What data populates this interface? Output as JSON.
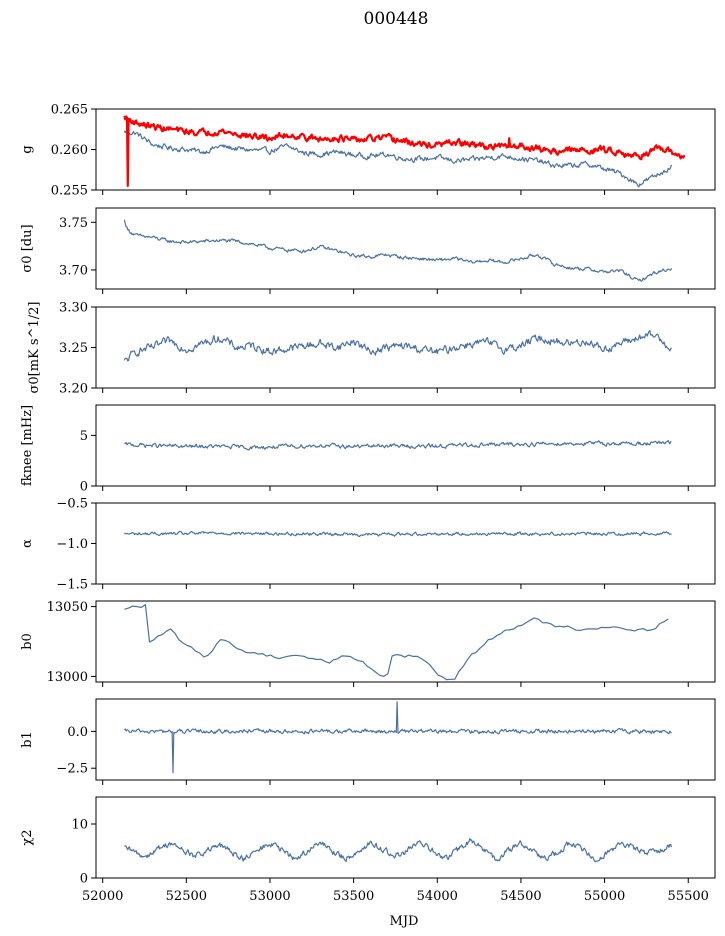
{
  "figure": {
    "title": "000448",
    "xlabel": "MJD",
    "x_ticks": [
      "52000",
      "52500",
      "53000",
      "53500",
      "54000",
      "54500",
      "55000",
      "55500"
    ]
  },
  "colors": {
    "series": "#4c72a4",
    "reference": "#ff0000"
  },
  "chart_data": [
    {
      "type": "line",
      "id": "gain",
      "ylabel": "g",
      "xlim": [
        51960,
        55660
      ],
      "ylim": [
        0.255,
        0.265
      ],
      "yticks": [
        "0.255",
        "0.260",
        "0.265"
      ],
      "series": [
        {
          "name": "g",
          "x": [
            52130,
            52200,
            52300,
            52400,
            52500,
            52600,
            52700,
            52800,
            52900,
            53000,
            53100,
            53200,
            53300,
            53400,
            53500,
            53600,
            53700,
            53800,
            53900,
            54000,
            54100,
            54200,
            54300,
            54400,
            54500,
            54600,
            54700,
            54800,
            54900,
            55000,
            55100,
            55200,
            55300,
            55400
          ],
          "y": [
            0.2622,
            0.262,
            0.2606,
            0.2602,
            0.26,
            0.2597,
            0.2604,
            0.2601,
            0.2599,
            0.2598,
            0.2604,
            0.2596,
            0.2594,
            0.2597,
            0.2593,
            0.2592,
            0.2594,
            0.2589,
            0.2588,
            0.259,
            0.2586,
            0.2587,
            0.259,
            0.2592,
            0.2589,
            0.2586,
            0.258,
            0.258,
            0.2582,
            0.2576,
            0.257,
            0.2557,
            0.2567,
            0.2579
          ]
        },
        {
          "name": "reference",
          "x": [
            52130,
            52200,
            52300,
            52400,
            52500,
            52600,
            52700,
            52800,
            52900,
            53000,
            53100,
            53200,
            53300,
            53400,
            53500,
            53600,
            53700,
            53800,
            53900,
            54000,
            54100,
            54200,
            54300,
            54400,
            54500,
            54600,
            54700,
            54800,
            54900,
            55000,
            55100,
            55200,
            55300,
            55400,
            55480
          ],
          "y": [
            0.264,
            0.2633,
            0.2628,
            0.2625,
            0.2622,
            0.2621,
            0.2623,
            0.2619,
            0.2616,
            0.2614,
            0.2618,
            0.2616,
            0.2612,
            0.2615,
            0.2611,
            0.2613,
            0.2614,
            0.261,
            0.2606,
            0.2605,
            0.2609,
            0.2606,
            0.2604,
            0.2603,
            0.2605,
            0.2601,
            0.2598,
            0.2599,
            0.2599,
            0.26,
            0.2597,
            0.2591,
            0.26,
            0.2597,
            0.259
          ]
        }
      ],
      "annotations": [
        "reference line drops to 0.2555 near MJD 52150",
        "spike near MJD 54430"
      ]
    },
    {
      "type": "line",
      "id": "sigma0_du",
      "ylabel": "σ0 [du]",
      "xlim": [
        51960,
        55660
      ],
      "ylim": [
        3.68,
        3.765
      ],
      "yticks": [
        "3.70",
        "3.75"
      ],
      "series": [
        {
          "name": "sigma0",
          "x": [
            52130,
            52150,
            52200,
            52300,
            52400,
            52500,
            52600,
            52700,
            52800,
            52900,
            53000,
            53100,
            53200,
            53300,
            53400,
            53500,
            53600,
            53700,
            53800,
            53900,
            54000,
            54100,
            54200,
            54300,
            54400,
            54500,
            54600,
            54700,
            54800,
            54900,
            55000,
            55100,
            55200,
            55300,
            55400
          ],
          "y": [
            3.752,
            3.742,
            3.736,
            3.734,
            3.73,
            3.729,
            3.73,
            3.731,
            3.73,
            3.727,
            3.723,
            3.721,
            3.72,
            3.724,
            3.72,
            3.715,
            3.714,
            3.716,
            3.713,
            3.712,
            3.71,
            3.712,
            3.708,
            3.71,
            3.708,
            3.712,
            3.716,
            3.706,
            3.702,
            3.701,
            3.698,
            3.699,
            3.688,
            3.697,
            3.702
          ]
        }
      ]
    },
    {
      "type": "line",
      "id": "sigma0_mk",
      "ylabel": "σ0[mK s^1/2]",
      "xlim": [
        51960,
        55660
      ],
      "ylim": [
        3.2,
        3.3
      ],
      "yticks": [
        "3.20",
        "3.25",
        "3.30"
      ],
      "series": [
        {
          "name": "sigma0_mK",
          "x": [
            52130,
            52200,
            52300,
            52400,
            52500,
            52600,
            52700,
            52800,
            52900,
            53000,
            53100,
            53200,
            53300,
            53400,
            53500,
            53600,
            53700,
            53800,
            53900,
            54000,
            54100,
            54200,
            54300,
            54400,
            54500,
            54600,
            54700,
            54800,
            54900,
            55000,
            55100,
            55200,
            55300,
            55400
          ],
          "y": [
            3.232,
            3.245,
            3.25,
            3.258,
            3.248,
            3.255,
            3.262,
            3.25,
            3.252,
            3.245,
            3.248,
            3.252,
            3.255,
            3.25,
            3.258,
            3.245,
            3.25,
            3.252,
            3.248,
            3.244,
            3.25,
            3.255,
            3.256,
            3.248,
            3.252,
            3.262,
            3.258,
            3.255,
            3.258,
            3.248,
            3.255,
            3.262,
            3.265,
            3.25
          ]
        }
      ]
    },
    {
      "type": "line",
      "id": "fknee",
      "ylabel": "fknee [mHz]",
      "xlim": [
        51960,
        55660
      ],
      "ylim": [
        0,
        8
      ],
      "yticks": [
        "0",
        "5"
      ],
      "series": [
        {
          "name": "fknee",
          "x": [
            52130,
            52300,
            52500,
            52700,
            52900,
            53100,
            53300,
            53500,
            53700,
            53900,
            54100,
            54300,
            54500,
            54700,
            54900,
            55100,
            55300,
            55400
          ],
          "y": [
            4.1,
            4.0,
            3.9,
            3.9,
            3.8,
            3.9,
            4.0,
            3.9,
            4.0,
            3.9,
            4.0,
            4.1,
            4.1,
            4.2,
            4.2,
            4.2,
            4.2,
            4.3
          ]
        }
      ]
    },
    {
      "type": "line",
      "id": "alpha",
      "ylabel": "α",
      "xlim": [
        51960,
        55660
      ],
      "ylim": [
        -1.5,
        -0.5
      ],
      "yticks": [
        "−1.5",
        "−1.0",
        "−0.5"
      ],
      "series": [
        {
          "name": "alpha",
          "x": [
            52130,
            52400,
            52700,
            53000,
            53300,
            53600,
            53900,
            54200,
            54500,
            54800,
            55100,
            55400
          ],
          "y": [
            -0.88,
            -0.88,
            -0.87,
            -0.88,
            -0.88,
            -0.89,
            -0.88,
            -0.88,
            -0.88,
            -0.88,
            -0.88,
            -0.87
          ]
        }
      ]
    },
    {
      "type": "line",
      "id": "b0",
      "ylabel": "b0",
      "xlim": [
        51960,
        55660
      ],
      "ylim": [
        12996,
        13054
      ],
      "yticks": [
        "13000",
        "13050"
      ],
      "series": [
        {
          "name": "b0",
          "x": [
            52130,
            52150,
            52200,
            52250,
            52270,
            52280,
            52320,
            52400,
            52460,
            52500,
            52560,
            52620,
            52700,
            52750,
            52850,
            52950,
            53050,
            53150,
            53250,
            53350,
            53450,
            53550,
            53650,
            53700,
            53730,
            53850,
            53900,
            53950,
            54050,
            54100,
            54200,
            54300,
            54400,
            54500,
            54600,
            54610,
            54700,
            54850,
            55000,
            55100,
            55200,
            55250,
            55300,
            55350,
            55400
          ],
          "y": [
            13047,
            13049,
            13050,
            13051,
            13051,
            13025,
            13027,
            13033,
            13026,
            13022,
            13017,
            13014,
            13027,
            13024,
            13018,
            13016,
            13014,
            13016,
            13013,
            13010,
            13016,
            13010,
            13002,
            13000,
            13015,
            13015,
            13014,
            13007,
            12998,
            12998,
            13015,
            13025,
            13033,
            13038,
            13043,
            13037,
            13036,
            13034,
            13036,
            13035,
            13034,
            13033,
            13035,
            13040,
            13043
          ]
        }
      ]
    },
    {
      "type": "line",
      "id": "b1",
      "ylabel": "b1",
      "xlim": [
        51960,
        55660
      ],
      "ylim": [
        -3.3,
        2.2
      ],
      "yticks": [
        "−2.5",
        "0.0"
      ],
      "series": [
        {
          "name": "b1",
          "x": [
            52130,
            52400,
            52700,
            53000,
            53300,
            53600,
            53900,
            54200,
            54500,
            54800,
            55100,
            55400
          ],
          "y": [
            0.0,
            0.0,
            0.0,
            0.0,
            0.0,
            0.0,
            0.0,
            0.0,
            0.0,
            0.0,
            0.0,
            0.0
          ]
        }
      ],
      "annotations": [
        "dip to −2.8 near MJD 52420",
        "spike to 2.0 near MJD 53760"
      ]
    },
    {
      "type": "line",
      "id": "chi2",
      "ylabel": "χ2",
      "xlim": [
        51960,
        55660
      ],
      "ylim": [
        0,
        15
      ],
      "yticks": [
        "0",
        "10"
      ],
      "series": [
        {
          "name": "chi2",
          "x": [
            52130,
            52250,
            52400,
            52550,
            52700,
            52850,
            53000,
            53150,
            53300,
            53450,
            53600,
            53750,
            53900,
            54050,
            54200,
            54350,
            54500,
            54650,
            54800,
            54950,
            55100,
            55250,
            55400
          ],
          "y": [
            5.5,
            4.0,
            6.5,
            4.0,
            6.0,
            3.5,
            6.5,
            3.5,
            6.5,
            3.5,
            6.5,
            4.0,
            6.5,
            3.5,
            7.0,
            3.5,
            6.5,
            3.5,
            6.5,
            3.5,
            6.5,
            4.5,
            6.0
          ]
        }
      ]
    }
  ]
}
